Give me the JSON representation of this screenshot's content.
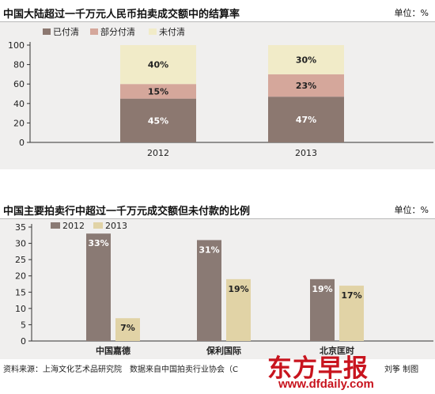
{
  "chart_data": [
    {
      "type": "bar",
      "stacked": true,
      "title": "中国大陆超过一千万元人民币拍卖成交额中的结算率",
      "unit": "单位：%",
      "categories": [
        "2012",
        "2013"
      ],
      "series": [
        {
          "name": "已付清",
          "values": [
            45,
            47
          ],
          "color": "#8c7870",
          "label_color": "#ffffff"
        },
        {
          "name": "部分付清",
          "values": [
            15,
            23
          ],
          "color": "#d5a79b",
          "label_color": "#222222"
        },
        {
          "name": "未付清",
          "values": [
            40,
            30
          ],
          "color": "#f1ebc8",
          "label_color": "#222222"
        }
      ],
      "yticks": [
        0,
        20,
        40,
        60,
        80,
        100
      ],
      "ylim": [
        0,
        100
      ],
      "grid": false,
      "legend": "top-left"
    },
    {
      "type": "bar",
      "title": "中国主要拍卖行中超过一千万元成交额但未付款的比例",
      "unit": "单位：%",
      "categories": [
        "中国嘉德",
        "保利国际",
        "北京匡时"
      ],
      "series": [
        {
          "name": "2012",
          "values": [
            33,
            31,
            19
          ],
          "color": "#8a7a74",
          "label_color": "#ffffff"
        },
        {
          "name": "2013",
          "values": [
            7,
            19,
            17
          ],
          "color": "#e1d3a6",
          "label_color": "#222222"
        }
      ],
      "yticks": [
        0,
        5,
        10,
        15,
        20,
        25,
        30,
        35
      ],
      "ylim": [
        0,
        35
      ],
      "grid": false,
      "legend": "top-left"
    }
  ],
  "footer": {
    "source": "资料来源：上海文化艺术品研究院　数据来自中国拍卖行业协会（C",
    "credit": "刘筝  制图",
    "brand": "东方早报",
    "url": "www.dfdaily.com"
  }
}
